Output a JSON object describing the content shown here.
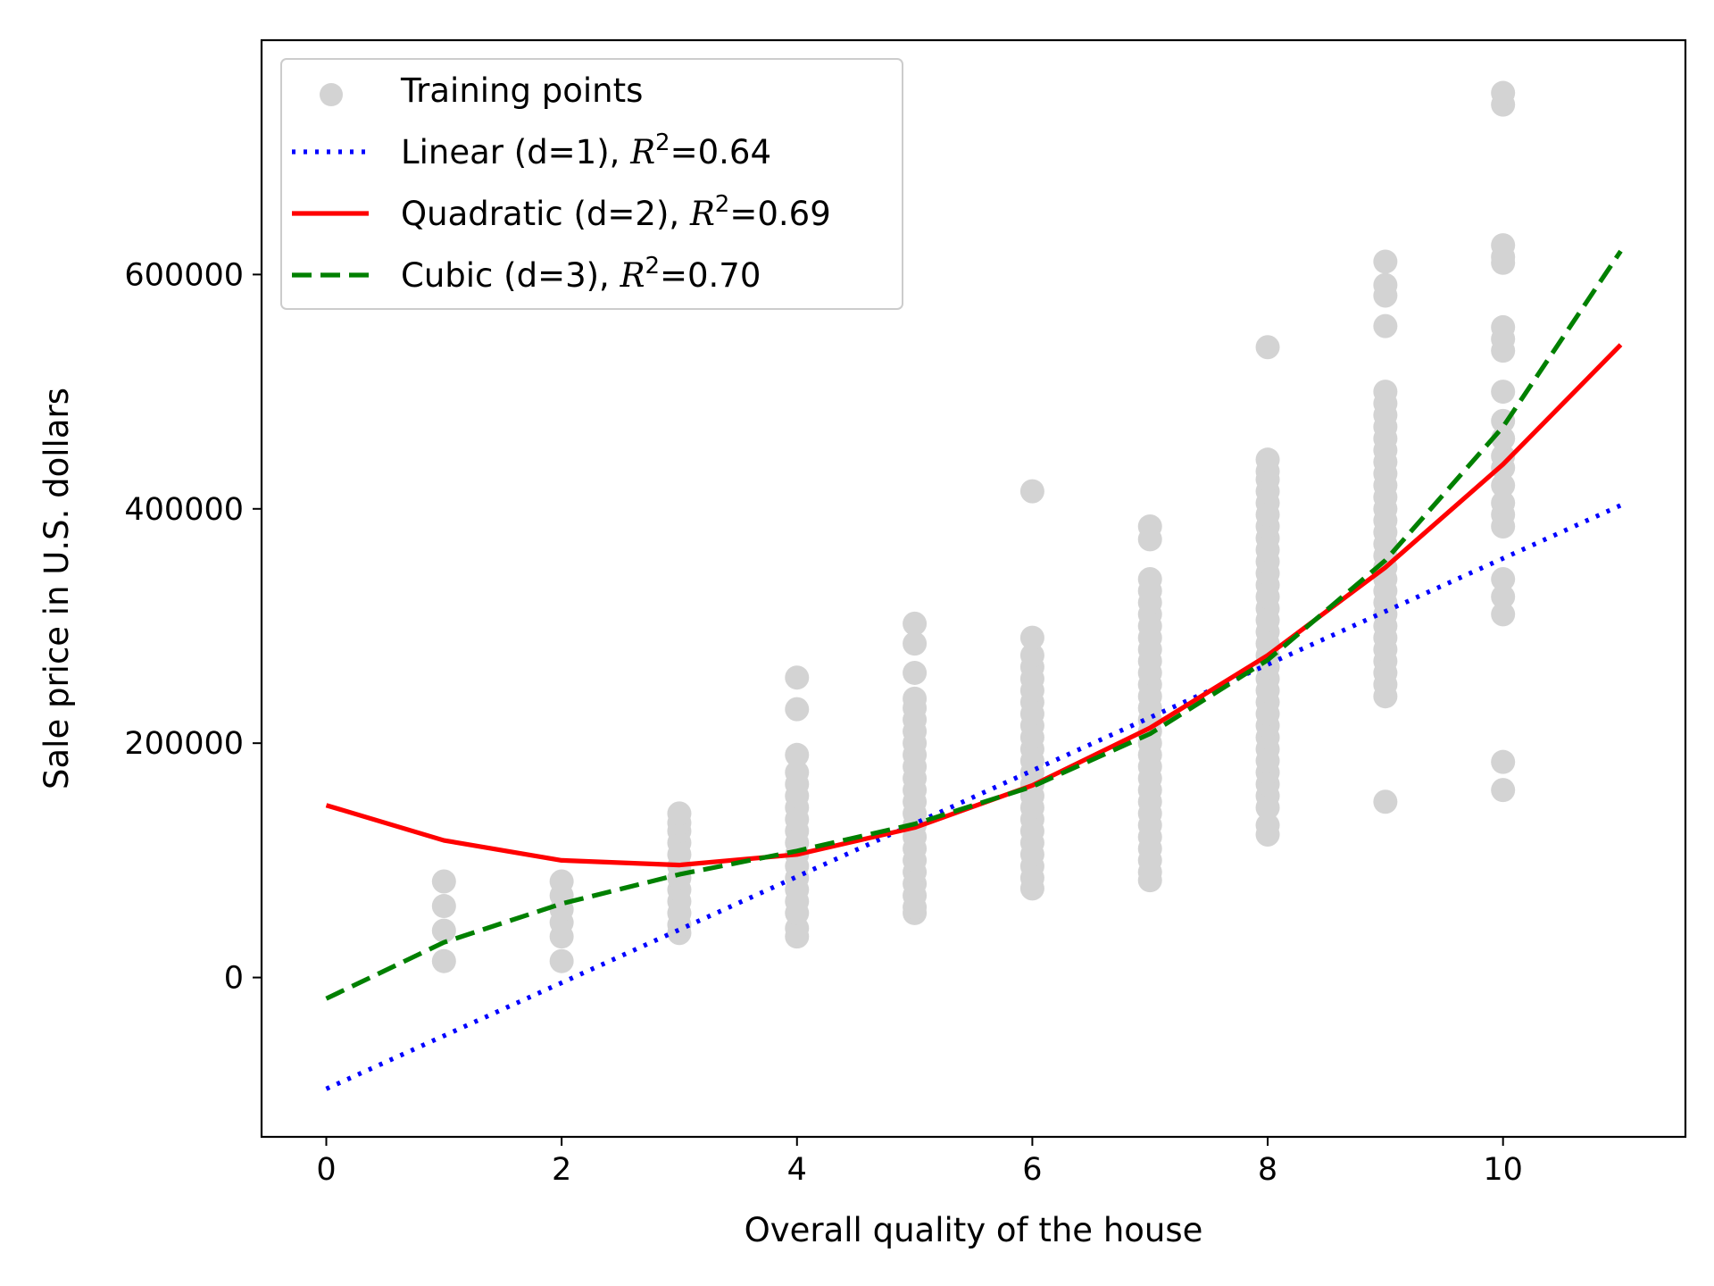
{
  "chart_data": {
    "type": "scatter",
    "xlabel": "Overall quality of the house",
    "ylabel": "Sale price in U.S. dollars",
    "xlim": [
      -0.55,
      11.55
    ],
    "ylim": [
      -136000,
      800000
    ],
    "xticks": [
      0,
      2,
      4,
      6,
      8,
      10
    ],
    "yticks": [
      0,
      200000,
      400000,
      600000
    ],
    "grid": false,
    "legend_position": "top-left",
    "scatter": {
      "name": "Training points",
      "color": "#d3d3d3",
      "points": [
        [
          1,
          14000
        ],
        [
          1,
          40000
        ],
        [
          1,
          61000
        ],
        [
          1,
          82000
        ],
        [
          2,
          14000
        ],
        [
          2,
          35000
        ],
        [
          2,
          47000
        ],
        [
          2,
          58000
        ],
        [
          2,
          70000
        ],
        [
          2,
          82000
        ],
        [
          3,
          38000
        ],
        [
          3,
          45000
        ],
        [
          3,
          55000
        ],
        [
          3,
          65000
        ],
        [
          3,
          75000
        ],
        [
          3,
          85000
        ],
        [
          3,
          95000
        ],
        [
          3,
          105000
        ],
        [
          3,
          115000
        ],
        [
          3,
          125000
        ],
        [
          3,
          132000
        ],
        [
          3,
          140000
        ],
        [
          4,
          35000
        ],
        [
          4,
          42000
        ],
        [
          4,
          55000
        ],
        [
          4,
          65000
        ],
        [
          4,
          75000
        ],
        [
          4,
          85000
        ],
        [
          4,
          95000
        ],
        [
          4,
          105000
        ],
        [
          4,
          115000
        ],
        [
          4,
          125000
        ],
        [
          4,
          135000
        ],
        [
          4,
          145000
        ],
        [
          4,
          155000
        ],
        [
          4,
          165000
        ],
        [
          4,
          175000
        ],
        [
          4,
          190000
        ],
        [
          4,
          229000
        ],
        [
          4,
          256000
        ],
        [
          5,
          55000
        ],
        [
          5,
          60000
        ],
        [
          5,
          70000
        ],
        [
          5,
          80000
        ],
        [
          5,
          90000
        ],
        [
          5,
          100000
        ],
        [
          5,
          110000
        ],
        [
          5,
          120000
        ],
        [
          5,
          130000
        ],
        [
          5,
          140000
        ],
        [
          5,
          150000
        ],
        [
          5,
          160000
        ],
        [
          5,
          170000
        ],
        [
          5,
          180000
        ],
        [
          5,
          190000
        ],
        [
          5,
          200000
        ],
        [
          5,
          210000
        ],
        [
          5,
          220000
        ],
        [
          5,
          230000
        ],
        [
          5,
          238000
        ],
        [
          5,
          260000
        ],
        [
          5,
          285000
        ],
        [
          5,
          302000
        ],
        [
          6,
          76000
        ],
        [
          6,
          85000
        ],
        [
          6,
          95000
        ],
        [
          6,
          105000
        ],
        [
          6,
          115000
        ],
        [
          6,
          125000
        ],
        [
          6,
          135000
        ],
        [
          6,
          145000
        ],
        [
          6,
          155000
        ],
        [
          6,
          165000
        ],
        [
          6,
          175000
        ],
        [
          6,
          185000
        ],
        [
          6,
          195000
        ],
        [
          6,
          205000
        ],
        [
          6,
          215000
        ],
        [
          6,
          225000
        ],
        [
          6,
          235000
        ],
        [
          6,
          245000
        ],
        [
          6,
          255000
        ],
        [
          6,
          265000
        ],
        [
          6,
          275000
        ],
        [
          6,
          290000
        ],
        [
          6,
          415000
        ],
        [
          7,
          83000
        ],
        [
          7,
          90000
        ],
        [
          7,
          100000
        ],
        [
          7,
          110000
        ],
        [
          7,
          120000
        ],
        [
          7,
          130000
        ],
        [
          7,
          140000
        ],
        [
          7,
          150000
        ],
        [
          7,
          160000
        ],
        [
          7,
          170000
        ],
        [
          7,
          180000
        ],
        [
          7,
          190000
        ],
        [
          7,
          200000
        ],
        [
          7,
          210000
        ],
        [
          7,
          220000
        ],
        [
          7,
          230000
        ],
        [
          7,
          240000
        ],
        [
          7,
          250000
        ],
        [
          7,
          260000
        ],
        [
          7,
          270000
        ],
        [
          7,
          280000
        ],
        [
          7,
          290000
        ],
        [
          7,
          300000
        ],
        [
          7,
          310000
        ],
        [
          7,
          320000
        ],
        [
          7,
          330000
        ],
        [
          7,
          340000
        ],
        [
          7,
          374000
        ],
        [
          7,
          385000
        ],
        [
          8,
          122000
        ],
        [
          8,
          130000
        ],
        [
          8,
          145000
        ],
        [
          8,
          155000
        ],
        [
          8,
          165000
        ],
        [
          8,
          175000
        ],
        [
          8,
          185000
        ],
        [
          8,
          195000
        ],
        [
          8,
          205000
        ],
        [
          8,
          215000
        ],
        [
          8,
          225000
        ],
        [
          8,
          235000
        ],
        [
          8,
          245000
        ],
        [
          8,
          255000
        ],
        [
          8,
          265000
        ],
        [
          8,
          275000
        ],
        [
          8,
          285000
        ],
        [
          8,
          295000
        ],
        [
          8,
          305000
        ],
        [
          8,
          315000
        ],
        [
          8,
          325000
        ],
        [
          8,
          335000
        ],
        [
          8,
          345000
        ],
        [
          8,
          355000
        ],
        [
          8,
          365000
        ],
        [
          8,
          375000
        ],
        [
          8,
          385000
        ],
        [
          8,
          395000
        ],
        [
          8,
          405000
        ],
        [
          8,
          415000
        ],
        [
          8,
          425000
        ],
        [
          8,
          432000
        ],
        [
          8,
          442000
        ],
        [
          8,
          538000
        ],
        [
          9,
          150000
        ],
        [
          9,
          240000
        ],
        [
          9,
          250000
        ],
        [
          9,
          260000
        ],
        [
          9,
          270000
        ],
        [
          9,
          280000
        ],
        [
          9,
          290000
        ],
        [
          9,
          300000
        ],
        [
          9,
          310000
        ],
        [
          9,
          320000
        ],
        [
          9,
          330000
        ],
        [
          9,
          340000
        ],
        [
          9,
          350000
        ],
        [
          9,
          360000
        ],
        [
          9,
          370000
        ],
        [
          9,
          380000
        ],
        [
          9,
          390000
        ],
        [
          9,
          400000
        ],
        [
          9,
          410000
        ],
        [
          9,
          420000
        ],
        [
          9,
          430000
        ],
        [
          9,
          440000
        ],
        [
          9,
          450000
        ],
        [
          9,
          460000
        ],
        [
          9,
          470000
        ],
        [
          9,
          480000
        ],
        [
          9,
          490000
        ],
        [
          9,
          500000
        ],
        [
          9,
          556000
        ],
        [
          9,
          582000
        ],
        [
          9,
          591000
        ],
        [
          9,
          611000
        ],
        [
          10,
          160000
        ],
        [
          10,
          184000
        ],
        [
          10,
          310000
        ],
        [
          10,
          325000
        ],
        [
          10,
          340000
        ],
        [
          10,
          385000
        ],
        [
          10,
          395000
        ],
        [
          10,
          405000
        ],
        [
          10,
          420000
        ],
        [
          10,
          435000
        ],
        [
          10,
          445000
        ],
        [
          10,
          460000
        ],
        [
          10,
          475000
        ],
        [
          10,
          500000
        ],
        [
          10,
          535000
        ],
        [
          10,
          545000
        ],
        [
          10,
          555000
        ],
        [
          10,
          610000
        ],
        [
          10,
          615000
        ],
        [
          10,
          625000
        ],
        [
          10,
          745000
        ],
        [
          10,
          755000
        ]
      ]
    },
    "series": [
      {
        "name": "Linear (d=1), R^2=0.64",
        "color": "#0000ff",
        "style": "dotted",
        "x": [
          0,
          11
        ],
        "y": [
          -95000,
          403000
        ]
      },
      {
        "name": "Quadratic (d=2), R^2=0.69",
        "color": "#ff0000",
        "style": "solid",
        "x": [
          0,
          1,
          2,
          3,
          4,
          5,
          6,
          7,
          8,
          9,
          10,
          11
        ],
        "y": [
          147000,
          117000,
          100000,
          96000,
          105000,
          128000,
          164000,
          213000,
          275000,
          350000,
          438000,
          540000
        ]
      },
      {
        "name": "Cubic (d=3), R^2=0.70",
        "color": "#008000",
        "style": "dashed",
        "x": [
          0,
          1,
          2,
          3,
          4,
          5,
          6,
          7,
          8,
          9,
          10,
          11
        ],
        "y": [
          -18000,
          30000,
          63000,
          88000,
          108000,
          131000,
          163000,
          208000,
          271000,
          356000,
          470000,
          620000
        ]
      }
    ]
  },
  "legend": {
    "items": [
      {
        "kind": "scatter",
        "color": "#d3d3d3",
        "label": "Training points"
      },
      {
        "kind": "line",
        "color": "#0000ff",
        "style": "dotted",
        "label": "Linear (d=1), ",
        "r_label": "R",
        "sup": "2",
        "value": "=0.64"
      },
      {
        "kind": "line",
        "color": "#ff0000",
        "style": "solid",
        "label": "Quadratic (d=2), ",
        "r_label": "R",
        "sup": "2",
        "value": "=0.69"
      },
      {
        "kind": "line",
        "color": "#008000",
        "style": "dashed",
        "label": "Cubic (d=3), ",
        "r_label": "R",
        "sup": "2",
        "value": "=0.70"
      }
    ]
  }
}
